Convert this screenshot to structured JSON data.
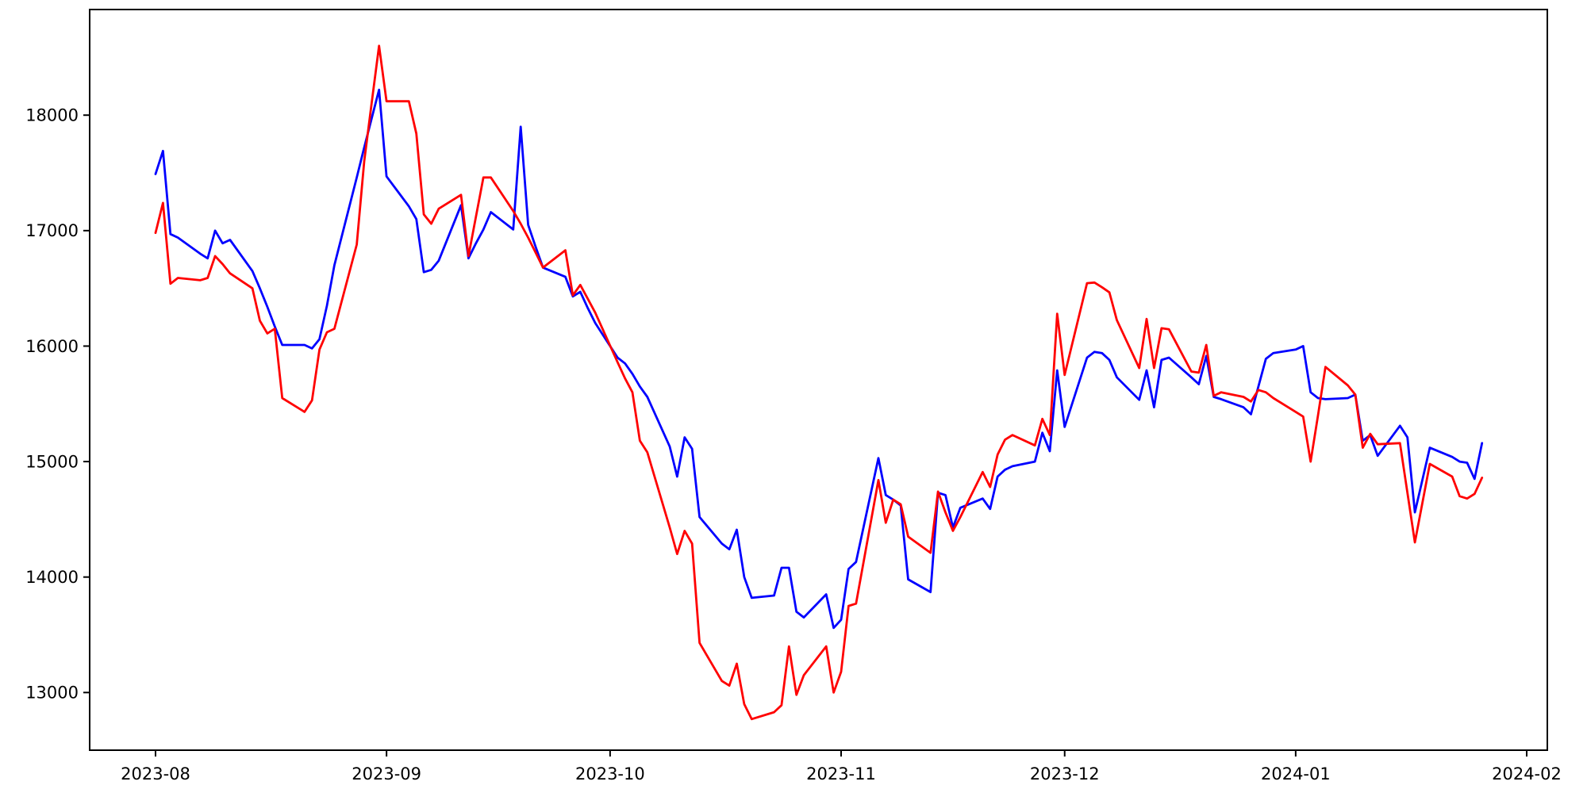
{
  "chart_data": {
    "type": "line",
    "title": "",
    "xlabel": "",
    "ylabel": "",
    "grid": false,
    "legend_position": "none",
    "background_color": "#ffffff",
    "axis_color": "#000000",
    "x_start": "2023-08-01",
    "x_tick_labels": [
      "2023-08",
      "2023-09",
      "2023-10",
      "2023-11",
      "2023-12",
      "2024-01",
      "2024-02"
    ],
    "x_tick_dates": [
      "2023-08-01",
      "2023-09-01",
      "2023-10-01",
      "2023-11-01",
      "2023-12-01",
      "2024-01-01",
      "2024-02-01"
    ],
    "y_ticks": [
      13000,
      14000,
      15000,
      16000,
      17000,
      18000
    ],
    "ylim": [
      12490,
      18915
    ],
    "xlim_dates": [
      "2023-07-23",
      "2024-02-04"
    ],
    "dates": [
      "2023-08-01",
      "2023-08-02",
      "2023-08-03",
      "2023-08-04",
      "2023-08-07",
      "2023-08-08",
      "2023-08-09",
      "2023-08-10",
      "2023-08-11",
      "2023-08-14",
      "2023-08-15",
      "2023-08-16",
      "2023-08-17",
      "2023-08-18",
      "2023-08-21",
      "2023-08-22",
      "2023-08-23",
      "2023-08-24",
      "2023-08-25",
      "2023-08-28",
      "2023-08-29",
      "2023-08-30",
      "2023-08-31",
      "2023-09-01",
      "2023-09-04",
      "2023-09-05",
      "2023-09-06",
      "2023-09-07",
      "2023-09-08",
      "2023-09-11",
      "2023-09-12",
      "2023-09-13",
      "2023-09-14",
      "2023-09-15",
      "2023-09-18",
      "2023-09-19",
      "2023-09-20",
      "2023-09-21",
      "2023-09-22",
      "2023-09-25",
      "2023-09-26",
      "2023-09-27",
      "2023-09-28",
      "2023-09-29",
      "2023-10-02",
      "2023-10-03",
      "2023-10-04",
      "2023-10-05",
      "2023-10-06",
      "2023-10-09",
      "2023-10-10",
      "2023-10-11",
      "2023-10-12",
      "2023-10-13",
      "2023-10-16",
      "2023-10-17",
      "2023-10-18",
      "2023-10-19",
      "2023-10-20",
      "2023-10-23",
      "2023-10-24",
      "2023-10-25",
      "2023-10-26",
      "2023-10-27",
      "2023-10-30",
      "2023-10-31",
      "2023-11-01",
      "2023-11-02",
      "2023-11-03",
      "2023-11-06",
      "2023-11-07",
      "2023-11-08",
      "2023-11-09",
      "2023-11-10",
      "2023-11-13",
      "2023-11-14",
      "2023-11-15",
      "2023-11-16",
      "2023-11-17",
      "2023-11-20",
      "2023-11-21",
      "2023-11-22",
      "2023-11-23",
      "2023-11-24",
      "2023-11-27",
      "2023-11-28",
      "2023-11-29",
      "2023-11-30",
      "2023-12-01",
      "2023-12-04",
      "2023-12-05",
      "2023-12-06",
      "2023-12-07",
      "2023-12-08",
      "2023-12-11",
      "2023-12-12",
      "2023-12-13",
      "2023-12-14",
      "2023-12-15",
      "2023-12-18",
      "2023-12-19",
      "2023-12-20",
      "2023-12-21",
      "2023-12-22",
      "2023-12-25",
      "2023-12-26",
      "2023-12-27",
      "2023-12-28",
      "2023-12-29",
      "2024-01-01",
      "2024-01-02",
      "2024-01-03",
      "2024-01-04",
      "2024-01-05",
      "2024-01-08",
      "2024-01-09",
      "2024-01-10",
      "2024-01-11",
      "2024-01-12",
      "2024-01-15",
      "2024-01-16",
      "2024-01-17",
      "2024-01-18",
      "2024-01-19",
      "2024-01-22",
      "2024-01-23",
      "2024-01-24",
      "2024-01-25",
      "2024-01-26"
    ],
    "series": [
      {
        "name": "blue-series",
        "color": "#0000ff",
        "values": [
          17490,
          17690,
          16970,
          16940,
          16800,
          16760,
          17000,
          16890,
          16920,
          16650,
          16500,
          16340,
          16170,
          16010,
          16010,
          15980,
          16060,
          16350,
          16700,
          17460,
          17720,
          17970,
          18220,
          17470,
          17210,
          17100,
          16640,
          16660,
          16740,
          17220,
          16760,
          16890,
          17010,
          17160,
          17010,
          17900,
          17050,
          16860,
          16680,
          16600,
          16430,
          16470,
          16330,
          16200,
          15900,
          15850,
          15760,
          15650,
          15560,
          15130,
          14870,
          15210,
          15110,
          14520,
          14290,
          14240,
          14410,
          14000,
          13820,
          13840,
          14080,
          14080,
          13700,
          13650,
          13850,
          13560,
          13630,
          14070,
          14130,
          15030,
          14710,
          14670,
          14620,
          13980,
          13870,
          14730,
          14710,
          14430,
          14600,
          14680,
          14590,
          14870,
          14930,
          14960,
          15000,
          15250,
          15090,
          15790,
          15300,
          15900,
          15950,
          15940,
          15880,
          15730,
          15535,
          15790,
          15470,
          15880,
          15900,
          15730,
          15670,
          15915,
          15560,
          15540,
          15470,
          15410,
          15650,
          15890,
          15940,
          15970,
          16000,
          15600,
          15550,
          15540,
          15550,
          15580,
          15180,
          15230,
          15050,
          15310,
          15210,
          14560,
          14840,
          15120,
          15040,
          15000,
          14990,
          14850,
          15160
        ]
      },
      {
        "name": "red-series",
        "color": "#ff0000",
        "values": [
          16980,
          17240,
          16540,
          16590,
          16570,
          16590,
          16780,
          16710,
          16630,
          16500,
          16220,
          16110,
          16150,
          15550,
          15430,
          15530,
          15970,
          16120,
          16150,
          16880,
          17600,
          18100,
          18600,
          18120,
          18120,
          17840,
          17140,
          17060,
          17190,
          17310,
          16780,
          17120,
          17460,
          17460,
          17170,
          17060,
          16940,
          16810,
          16680,
          16830,
          16440,
          16530,
          16410,
          16290,
          15860,
          15720,
          15600,
          15180,
          15080,
          14430,
          14200,
          14400,
          14290,
          13430,
          13100,
          13060,
          13250,
          12900,
          12770,
          12830,
          12890,
          13400,
          12980,
          13150,
          13400,
          13000,
          13180,
          13750,
          13770,
          14840,
          14470,
          14670,
          14630,
          14350,
          14210,
          14740,
          14560,
          14400,
          14520,
          14910,
          14780,
          15060,
          15190,
          15230,
          15140,
          15370,
          15230,
          16280,
          15750,
          16545,
          16550,
          16510,
          16465,
          16225,
          15810,
          16235,
          15810,
          16155,
          16145,
          15780,
          15770,
          16010,
          15570,
          15600,
          15560,
          15520,
          15620,
          15600,
          15550,
          15430,
          15390,
          15000,
          15400,
          15820,
          15660,
          15580,
          15120,
          15240,
          15150,
          15160,
          14730,
          14300,
          14640,
          14980,
          14870,
          14700,
          14680,
          14720,
          14860
        ]
      }
    ]
  }
}
